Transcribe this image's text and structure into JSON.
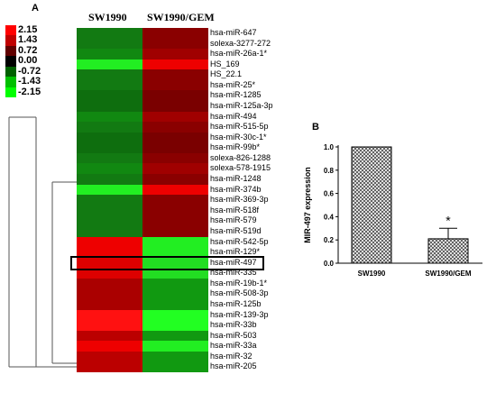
{
  "panel_a": {
    "letter": "A",
    "columns": [
      "SW1990",
      "SW1990/GEM"
    ],
    "legend": {
      "labels": [
        "2.15",
        "1.43",
        "0.72",
        "0.00",
        "-0.72",
        "-1.43",
        "-2.15"
      ],
      "colors": [
        "#ff0000",
        "#c00000",
        "#600000",
        "#000000",
        "#006000",
        "#00c000",
        "#00ff00"
      ]
    },
    "highlight": "hsa-miR-497",
    "rows": [
      {
        "label": "hsa-miR-647",
        "colors": [
          "#127a12",
          "#8a0000"
        ]
      },
      {
        "label": "solexa-3277-272",
        "colors": [
          "#127a12",
          "#8a0000"
        ]
      },
      {
        "label": "hsa-miR-26a-1*",
        "colors": [
          "#118811",
          "#a00000"
        ]
      },
      {
        "label": "HS_169",
        "colors": [
          "#22ee22",
          "#ee0000"
        ]
      },
      {
        "label": "HS_22.1",
        "colors": [
          "#127a12",
          "#8a0000"
        ]
      },
      {
        "label": "hsa-miR-25*",
        "colors": [
          "#127a12",
          "#8a0000"
        ]
      },
      {
        "label": "hsa-miR-1285",
        "colors": [
          "#0e6e0e",
          "#7a0000"
        ]
      },
      {
        "label": "hsa-miR-125a-3p",
        "colors": [
          "#0e6e0e",
          "#7a0000"
        ]
      },
      {
        "label": "hsa-miR-494",
        "colors": [
          "#118811",
          "#a00000"
        ]
      },
      {
        "label": "hsa-miR-515-5p",
        "colors": [
          "#127a12",
          "#8a0000"
        ]
      },
      {
        "label": "hsa-miR-30c-1*",
        "colors": [
          "#0e6e0e",
          "#7a0000"
        ]
      },
      {
        "label": "hsa-miR-99b*",
        "colors": [
          "#0e6e0e",
          "#7a0000"
        ]
      },
      {
        "label": "solexa-826-1288",
        "colors": [
          "#127a12",
          "#8a0000"
        ]
      },
      {
        "label": "solexa-578-1915",
        "colors": [
          "#118811",
          "#a00000"
        ]
      },
      {
        "label": "hsa-miR-1248",
        "colors": [
          "#127a12",
          "#8a0000"
        ]
      },
      {
        "label": "hsa-miR-374b",
        "colors": [
          "#22ee22",
          "#ee0000"
        ]
      },
      {
        "label": "hsa-miR-369-3p",
        "colors": [
          "#127a12",
          "#8a0000"
        ]
      },
      {
        "label": "hsa-miR-518f",
        "colors": [
          "#127a12",
          "#8a0000"
        ]
      },
      {
        "label": "hsa-miR-579",
        "colors": [
          "#127a12",
          "#8a0000"
        ]
      },
      {
        "label": "hsa-miR-519d",
        "colors": [
          "#127a12",
          "#8a0000"
        ]
      },
      {
        "label": "hsa-miR-542-5p",
        "colors": [
          "#ee0000",
          "#22ee22"
        ]
      },
      {
        "label": "hsa-miR-129*",
        "colors": [
          "#ee0000",
          "#22ee22"
        ]
      },
      {
        "label": "hsa-miR-497",
        "colors": [
          "#dd0000",
          "#22dd22"
        ]
      },
      {
        "label": "hsa-miR-335",
        "colors": [
          "#dd0000",
          "#22dd22"
        ]
      },
      {
        "label": "hsa-miR-19b-1*",
        "colors": [
          "#aa0000",
          "#119911"
        ]
      },
      {
        "label": "hsa-miR-508-3p",
        "colors": [
          "#aa0000",
          "#119911"
        ]
      },
      {
        "label": "hsa-miR-125b",
        "colors": [
          "#aa0000",
          "#119911"
        ]
      },
      {
        "label": "hsa-miR-139-3p",
        "colors": [
          "#ff1111",
          "#22ff22"
        ]
      },
      {
        "label": "hsa-miR-33b",
        "colors": [
          "#ff1111",
          "#22ff22"
        ]
      },
      {
        "label": "hsa-miR-503",
        "colors": [
          "#bb0000",
          "#119911"
        ]
      },
      {
        "label": "hsa-miR-33a",
        "colors": [
          "#ee0000",
          "#22ee22"
        ]
      },
      {
        "label": "hsa-miR-32",
        "colors": [
          "#bb0000",
          "#119911"
        ]
      },
      {
        "label": "hsa-miR-205",
        "colors": [
          "#bb0000",
          "#119911"
        ]
      }
    ]
  },
  "panel_b": {
    "letter": "B",
    "significance_mark": "*"
  },
  "chart_data": {
    "type": "bar",
    "categories": [
      "SW1990",
      "SW1990/GEM"
    ],
    "values": [
      1.0,
      0.21
    ],
    "error": [
      0,
      0.09
    ],
    "ylabel": "MIR-497 expression",
    "ylim": [
      0,
      1.0
    ],
    "yticks": [
      "0.0",
      "0.2",
      "0.4",
      "0.6",
      "0.8",
      "1.0"
    ],
    "grid": false,
    "bar_fill": "crosshatch"
  }
}
